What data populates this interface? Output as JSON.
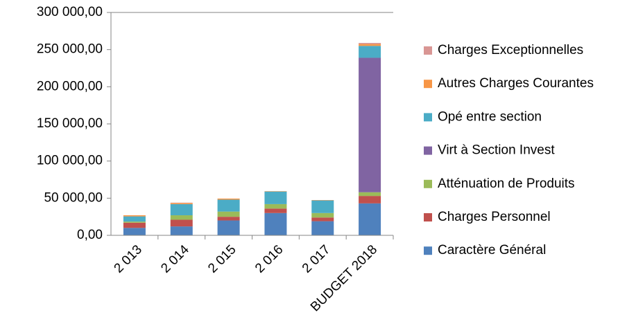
{
  "chart_data": {
    "type": "stacked_bar",
    "categories": [
      "2 013",
      "2 014",
      "2 015",
      "2 016",
      "2 017",
      "BUDGET 2018"
    ],
    "series": [
      {
        "name": "Caractère Général",
        "color": "#4f81bd",
        "values": [
          10000,
          12000,
          20000,
          30000,
          19000,
          43000
        ]
      },
      {
        "name": "Charges Personnel",
        "color": "#c0504d",
        "values": [
          7000,
          9000,
          5000,
          6000,
          5000,
          10000
        ]
      },
      {
        "name": "Atténuation de Produits",
        "color": "#9bbb59",
        "values": [
          1500,
          6000,
          7000,
          6000,
          6000,
          5000
        ]
      },
      {
        "name": "Virt à Section Invest",
        "color": "#8064a2",
        "values": [
          0,
          0,
          0,
          0,
          0,
          181000
        ]
      },
      {
        "name": "Opé entre section",
        "color": "#4bacc6",
        "values": [
          7000,
          15000,
          16000,
          17000,
          17000,
          16000
        ]
      },
      {
        "name": "Autres Charges Courantes",
        "color": "#f79646",
        "values": [
          1500,
          1500,
          1500,
          500,
          500,
          2500
        ]
      },
      {
        "name": "Charges Exceptionnelles",
        "color": "#d99694",
        "values": [
          0,
          500,
          0,
          0,
          0,
          1500
        ]
      }
    ],
    "ylim": [
      0,
      300000
    ],
    "yticks": [
      {
        "value": 0,
        "label": "0,00"
      },
      {
        "value": 50000,
        "label": "50 000,00"
      },
      {
        "value": 100000,
        "label": "100 000,00"
      },
      {
        "value": 150000,
        "label": "150 000,00"
      },
      {
        "value": 200000,
        "label": "200 000,00"
      },
      {
        "value": 250000,
        "label": "250 000,00"
      },
      {
        "value": 300000,
        "label": "300 000,00"
      }
    ],
    "legend": "right"
  }
}
